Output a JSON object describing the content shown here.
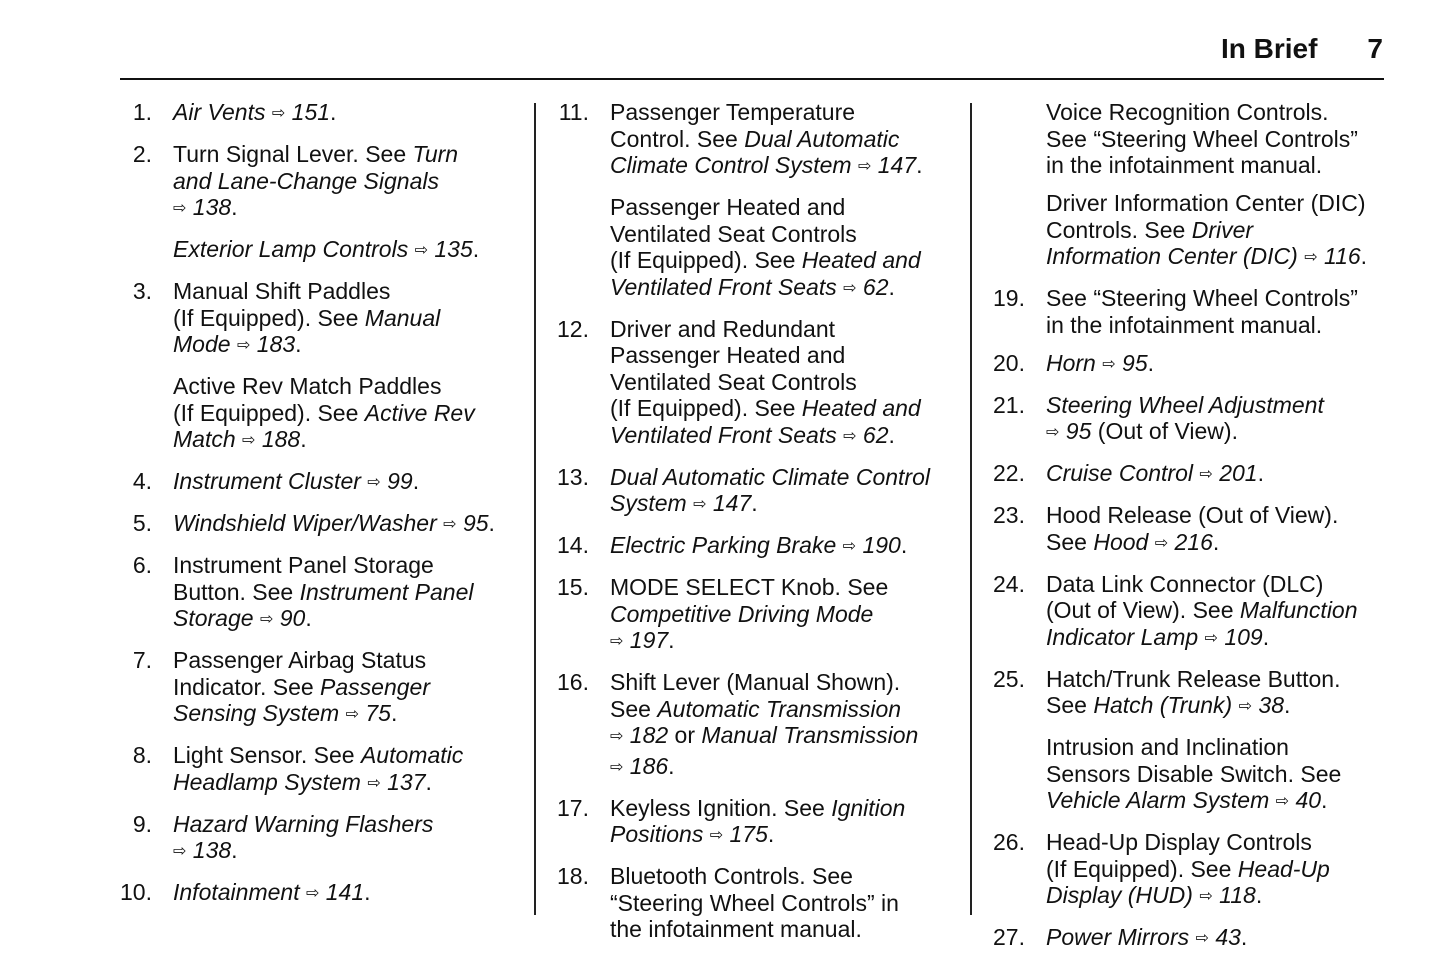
{
  "header": {
    "section": "In Brief",
    "page_number": "7"
  },
  "columns": [
    [
      {
        "num": "1.",
        "lines": [
          [
            [
              "i",
              "Air Vents "
            ],
            [
              "r",
              "151"
            ],
            [
              "n",
              "."
            ]
          ]
        ]
      },
      {
        "num": "2.",
        "lines": [
          [
            [
              "n",
              "Turn Signal Lever. See "
            ],
            [
              "i",
              "Turn"
            ]
          ],
          [
            [
              "i",
              "and Lane-Change Signals"
            ]
          ],
          [
            [
              "r",
              "138"
            ],
            [
              "n",
              "."
            ]
          ]
        ]
      },
      {
        "num": "",
        "lines": [
          [
            [
              "i",
              "Exterior Lamp Controls "
            ],
            [
              "r",
              "135"
            ],
            [
              "n",
              "."
            ]
          ]
        ]
      },
      {
        "num": "3.",
        "lines": [
          [
            [
              "n",
              "Manual Shift Paddles"
            ]
          ],
          [
            [
              "n",
              "(If Equipped). See "
            ],
            [
              "i",
              "Manual"
            ]
          ],
          [
            [
              "i",
              "Mode "
            ],
            [
              "r",
              "183"
            ],
            [
              "n",
              "."
            ]
          ]
        ]
      },
      {
        "num": "",
        "lines": [
          [
            [
              "n",
              "Active Rev Match Paddles"
            ]
          ],
          [
            [
              "n",
              "(If Equipped). See "
            ],
            [
              "i",
              "Active Rev"
            ]
          ],
          [
            [
              "i",
              "Match "
            ],
            [
              "r",
              "188"
            ],
            [
              "n",
              "."
            ]
          ]
        ]
      },
      {
        "num": "4.",
        "lines": [
          [
            [
              "i",
              "Instrument Cluster "
            ],
            [
              "r",
              "99"
            ],
            [
              "n",
              "."
            ]
          ]
        ]
      },
      {
        "num": "5.",
        "lines": [
          [
            [
              "i",
              "Windshield Wiper/Washer "
            ],
            [
              "r",
              "95"
            ],
            [
              "n",
              "."
            ]
          ]
        ]
      },
      {
        "num": "6.",
        "lines": [
          [
            [
              "n",
              "Instrument Panel Storage"
            ]
          ],
          [
            [
              "n",
              "Button. See "
            ],
            [
              "i",
              "Instrument Panel"
            ]
          ],
          [
            [
              "i",
              "Storage "
            ],
            [
              "r",
              "90"
            ],
            [
              "n",
              "."
            ]
          ]
        ]
      },
      {
        "num": "7.",
        "lines": [
          [
            [
              "n",
              "Passenger Airbag Status"
            ]
          ],
          [
            [
              "n",
              "Indicator. See "
            ],
            [
              "i",
              "Passenger"
            ]
          ],
          [
            [
              "i",
              "Sensing System "
            ],
            [
              "r",
              "75"
            ],
            [
              "n",
              "."
            ]
          ]
        ]
      },
      {
        "num": "8.",
        "lines": [
          [
            [
              "n",
              "Light Sensor. See "
            ],
            [
              "i",
              "Automatic"
            ]
          ],
          [
            [
              "i",
              "Headlamp System "
            ],
            [
              "r",
              "137"
            ],
            [
              "n",
              "."
            ]
          ]
        ]
      },
      {
        "num": "9.",
        "lines": [
          [
            [
              "i",
              "Hazard Warning Flashers"
            ]
          ],
          [
            [
              "r",
              "138"
            ],
            [
              "n",
              "."
            ]
          ]
        ]
      },
      {
        "num": "10.",
        "lines": [
          [
            [
              "i",
              "Infotainment "
            ],
            [
              "r",
              "141"
            ],
            [
              "n",
              "."
            ]
          ]
        ]
      }
    ],
    [
      {
        "num": "11.",
        "lines": [
          [
            [
              "n",
              "Passenger Temperature"
            ]
          ],
          [
            [
              "n",
              "Control. See "
            ],
            [
              "i",
              "Dual Automatic"
            ]
          ],
          [
            [
              "i",
              "Climate Control System "
            ],
            [
              "r",
              "147"
            ],
            [
              "n",
              "."
            ]
          ]
        ]
      },
      {
        "num": "",
        "lines": [
          [
            [
              "n",
              "Passenger Heated and"
            ]
          ],
          [
            [
              "n",
              "Ventilated Seat Controls"
            ]
          ],
          [
            [
              "n",
              "(If Equipped). See "
            ],
            [
              "i",
              "Heated and"
            ]
          ],
          [
            [
              "i",
              "Ventilated Front Seats "
            ],
            [
              "r",
              "62"
            ],
            [
              "n",
              "."
            ]
          ]
        ]
      },
      {
        "num": "12.",
        "lines": [
          [
            [
              "n",
              "Driver and Redundant"
            ]
          ],
          [
            [
              "n",
              "Passenger Heated and"
            ]
          ],
          [
            [
              "n",
              "Ventilated Seat Controls"
            ]
          ],
          [
            [
              "n",
              "(If Equipped). See "
            ],
            [
              "i",
              "Heated and"
            ]
          ],
          [
            [
              "i",
              "Ventilated Front Seats "
            ],
            [
              "r",
              "62"
            ],
            [
              "n",
              "."
            ]
          ]
        ]
      },
      {
        "num": "13.",
        "lines": [
          [
            [
              "i",
              "Dual Automatic Climate Control"
            ]
          ],
          [
            [
              "i",
              "System "
            ],
            [
              "r",
              "147"
            ],
            [
              "n",
              "."
            ]
          ]
        ]
      },
      {
        "num": "14.",
        "lines": [
          [
            [
              "i",
              "Electric Parking Brake "
            ],
            [
              "r",
              "190"
            ],
            [
              "n",
              "."
            ]
          ]
        ]
      },
      {
        "num": "15.",
        "lines": [
          [
            [
              "n",
              "MODE SELECT Knob. See"
            ]
          ],
          [
            [
              "i",
              "Competitive Driving Mode"
            ]
          ],
          [
            [
              "r",
              "197"
            ],
            [
              "n",
              "."
            ]
          ]
        ]
      },
      {
        "num": "16.",
        "lines": [
          [
            [
              "n",
              "Shift Lever (Manual Shown)."
            ]
          ],
          [
            [
              "n",
              "See "
            ],
            [
              "i",
              "Automatic Transmission"
            ]
          ],
          [
            [
              "r",
              "182"
            ],
            [
              "n",
              " or "
            ],
            [
              "i",
              "Manual Transmission"
            ]
          ],
          [
            [
              "r",
              "186"
            ],
            [
              "n",
              "."
            ]
          ]
        ]
      },
      {
        "num": "17.",
        "lines": [
          [
            [
              "n",
              "Keyless Ignition. See "
            ],
            [
              "i",
              "Ignition"
            ]
          ],
          [
            [
              "i",
              "Positions "
            ],
            [
              "r",
              "175"
            ],
            [
              "n",
              "."
            ]
          ]
        ]
      },
      {
        "num": "18.",
        "lines": [
          [
            [
              "n",
              "Bluetooth Controls. See"
            ]
          ],
          [
            [
              "n",
              "“Steering Wheel Controls” in"
            ]
          ],
          [
            [
              "n",
              "the infotainment manual."
            ]
          ]
        ]
      }
    ],
    [
      {
        "num": "",
        "lines": [
          [
            [
              "n",
              "Voice Recognition Controls."
            ]
          ],
          [
            [
              "n",
              "See “Steering Wheel Controls”"
            ]
          ],
          [
            [
              "n",
              "in the infotainment manual."
            ]
          ]
        ]
      },
      {
        "num": "",
        "lines": [
          [
            [
              "n",
              "Driver Information Center (DIC)"
            ]
          ],
          [
            [
              "n",
              "Controls. See "
            ],
            [
              "i",
              "Driver"
            ]
          ],
          [
            [
              "i",
              "Information Center (DIC) "
            ],
            [
              "r",
              "116"
            ],
            [
              "n",
              "."
            ]
          ]
        ]
      },
      {
        "num": "19.",
        "lines": [
          [
            [
              "n",
              "See “Steering Wheel Controls”"
            ]
          ],
          [
            [
              "n",
              "in the infotainment manual."
            ]
          ]
        ]
      },
      {
        "num": "20.",
        "lines": [
          [
            [
              "i",
              "Horn "
            ],
            [
              "r",
              "95"
            ],
            [
              "n",
              "."
            ]
          ]
        ]
      },
      {
        "num": "21.",
        "lines": [
          [
            [
              "i",
              "Steering Wheel Adjustment"
            ]
          ],
          [
            [
              "r",
              "95"
            ],
            [
              "n",
              " (Out of View)."
            ]
          ]
        ]
      },
      {
        "num": "22.",
        "lines": [
          [
            [
              "i",
              "Cruise Control "
            ],
            [
              "r",
              "201"
            ],
            [
              "n",
              "."
            ]
          ]
        ]
      },
      {
        "num": "23.",
        "lines": [
          [
            [
              "n",
              "Hood Release (Out of View)."
            ]
          ],
          [
            [
              "n",
              "See "
            ],
            [
              "i",
              "Hood "
            ],
            [
              "r",
              "216"
            ],
            [
              "n",
              "."
            ]
          ]
        ]
      },
      {
        "num": "24.",
        "lines": [
          [
            [
              "n",
              "Data Link Connector (DLC)"
            ]
          ],
          [
            [
              "n",
              "(Out of View). See "
            ],
            [
              "i",
              "Malfunction"
            ]
          ],
          [
            [
              "i",
              "Indicator Lamp "
            ],
            [
              "r",
              "109"
            ],
            [
              "n",
              "."
            ]
          ]
        ]
      },
      {
        "num": "25.",
        "lines": [
          [
            [
              "n",
              "Hatch/Trunk Release Button."
            ]
          ],
          [
            [
              "n",
              "See "
            ],
            [
              "i",
              "Hatch (Trunk) "
            ],
            [
              "r",
              "38"
            ],
            [
              "n",
              "."
            ]
          ]
        ]
      },
      {
        "num": "",
        "lines": [
          [
            [
              "n",
              "Intrusion and Inclination"
            ]
          ],
          [
            [
              "n",
              "Sensors Disable Switch. See"
            ]
          ],
          [
            [
              "i",
              "Vehicle Alarm System "
            ],
            [
              "r",
              "40"
            ],
            [
              "n",
              "."
            ]
          ]
        ]
      },
      {
        "num": "26.",
        "lines": [
          [
            [
              "n",
              "Head-Up Display Controls"
            ]
          ],
          [
            [
              "n",
              "(If Equipped). See "
            ],
            [
              "i",
              "Head-Up"
            ]
          ],
          [
            [
              "i",
              "Display (HUD) "
            ],
            [
              "r",
              "118"
            ],
            [
              "n",
              "."
            ]
          ]
        ]
      },
      {
        "num": "27.",
        "lines": [
          [
            [
              "i",
              "Power Mirrors "
            ],
            [
              "r",
              "43"
            ],
            [
              "n",
              "."
            ]
          ]
        ]
      }
    ]
  ],
  "icons": {
    "page_reference": "arrow-right-outline-icon"
  }
}
